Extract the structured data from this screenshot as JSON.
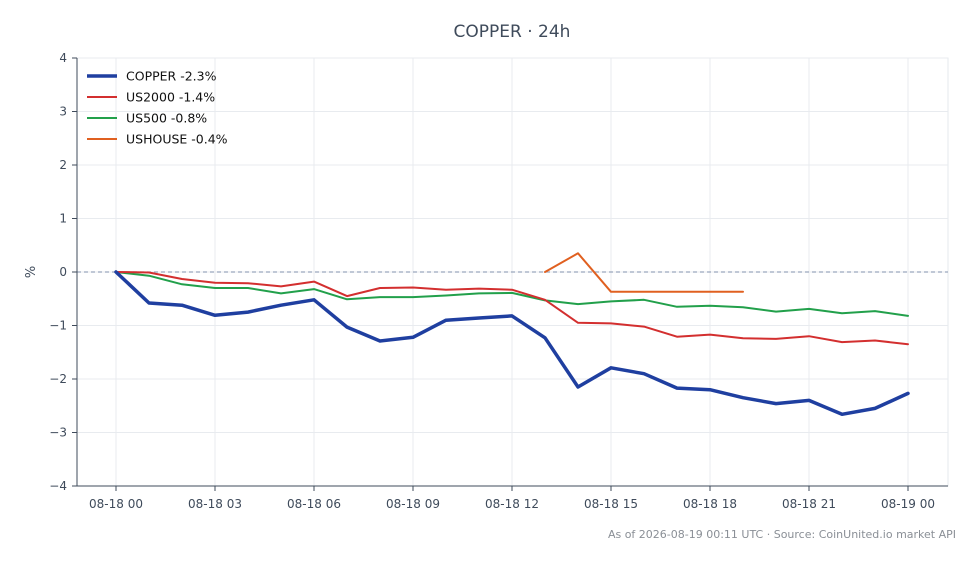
{
  "chart_data": {
    "type": "line",
    "title": "COPPER · 24h",
    "xlabel": "",
    "ylabel": "%",
    "x": [
      "08-18 00",
      "08-18 01",
      "08-18 02",
      "08-18 03",
      "08-18 04",
      "08-18 05",
      "08-18 06",
      "08-18 07",
      "08-18 08",
      "08-18 09",
      "08-18 10",
      "08-18 11",
      "08-18 12",
      "08-18 13",
      "08-18 14",
      "08-18 15",
      "08-18 16",
      "08-18 17",
      "08-18 18",
      "08-18 19",
      "08-18 20",
      "08-18 21",
      "08-18 22",
      "08-18 23",
      "08-19 00"
    ],
    "x_ticks": [
      "08-18 00",
      "08-18 03",
      "08-18 06",
      "08-18 09",
      "08-18 12",
      "08-18 15",
      "08-18 18",
      "08-18 21",
      "08-19 00"
    ],
    "ylim": [
      -4,
      4
    ],
    "y_ticks": [
      "4",
      "3",
      "2",
      "1",
      "0",
      "−1",
      "−2",
      "−3",
      "−4"
    ],
    "y_tick_values": [
      4,
      3,
      2,
      1,
      0,
      -1,
      -2,
      -3,
      -4
    ],
    "grid": true,
    "legend_position": "top-left",
    "reference_line": 0,
    "series": [
      {
        "name": "COPPER -2.3%",
        "color": "#1f3fa0",
        "values": [
          0.0,
          -0.58,
          -0.62,
          -0.81,
          -0.75,
          -0.62,
          -0.52,
          -1.03,
          -1.29,
          -1.22,
          -0.9,
          -0.86,
          -0.82,
          -1.23,
          -2.15,
          -1.79,
          -1.9,
          -2.17,
          -2.2,
          -2.35,
          -2.46,
          -2.4,
          -2.66,
          -2.55,
          -2.27
        ]
      },
      {
        "name": "US2000 -1.4%",
        "color": "#d32f2f",
        "values": [
          0.0,
          -0.01,
          -0.13,
          -0.2,
          -0.21,
          -0.27,
          -0.18,
          -0.45,
          -0.3,
          -0.29,
          -0.33,
          -0.31,
          -0.33,
          -0.52,
          -0.95,
          -0.96,
          -1.02,
          -1.21,
          -1.17,
          -1.24,
          -1.25,
          -1.2,
          -1.31,
          -1.28,
          -1.35
        ]
      },
      {
        "name": "US500 -0.8%",
        "color": "#22a04b",
        "values": [
          0.0,
          -0.07,
          -0.23,
          -0.3,
          -0.3,
          -0.4,
          -0.32,
          -0.51,
          -0.47,
          -0.47,
          -0.44,
          -0.4,
          -0.39,
          -0.53,
          -0.6,
          -0.55,
          -0.52,
          -0.65,
          -0.63,
          -0.66,
          -0.74,
          -0.69,
          -0.77,
          -0.73,
          -0.82
        ]
      },
      {
        "name": "USHOUSE -0.4%",
        "color": "#e06020",
        "values": [
          null,
          null,
          null,
          null,
          null,
          null,
          null,
          null,
          null,
          null,
          null,
          null,
          null,
          0.0,
          0.35,
          -0.37,
          -0.37,
          -0.37,
          -0.37,
          -0.37,
          null,
          null,
          null,
          null,
          null
        ]
      }
    ]
  },
  "footer": "As of 2026-08-19 00:11 UTC · Source: CoinUnited.io market API"
}
